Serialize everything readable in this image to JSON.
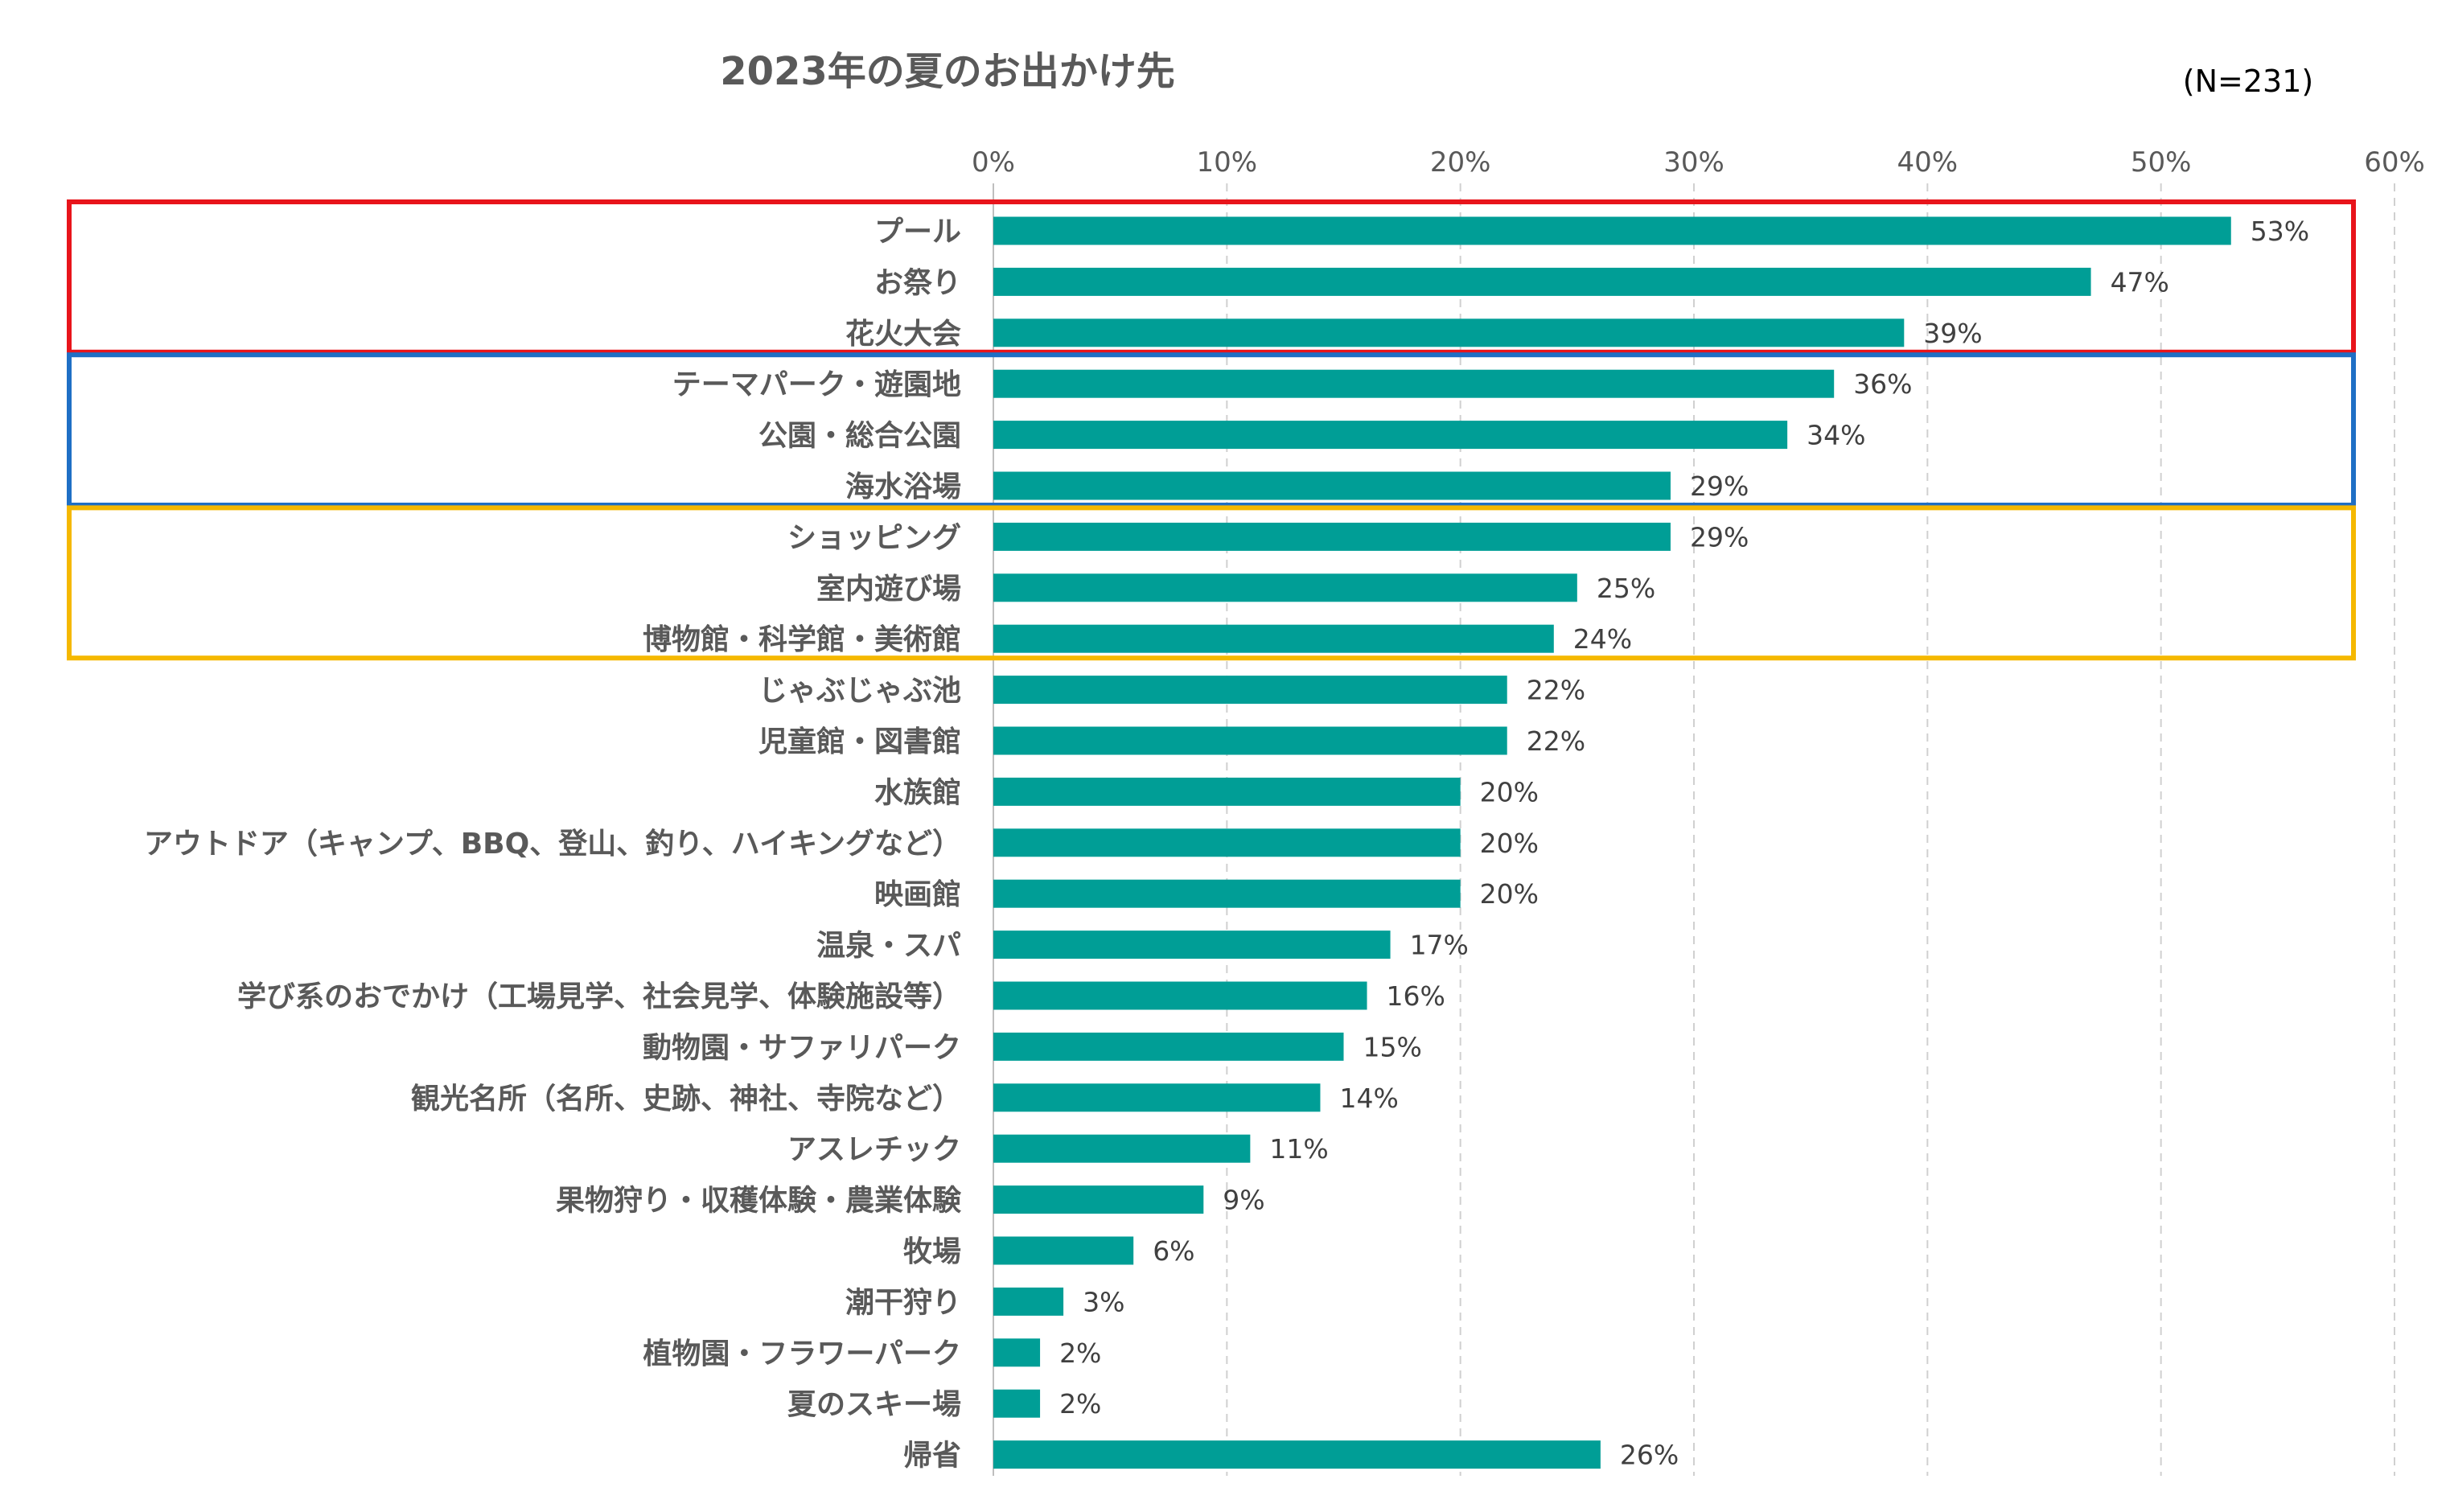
{
  "chart_data": {
    "type": "bar",
    "orientation": "horizontal",
    "title": "2023年の夏のお出かけ先",
    "note": "(N=231)",
    "xlabel": "",
    "ylabel": "",
    "xlim": [
      0,
      60
    ],
    "x_ticks": [
      "0%",
      "10%",
      "20%",
      "30%",
      "40%",
      "50%",
      "60%"
    ],
    "grid": true,
    "bar_color": "#009e96",
    "categories": [
      "プール",
      "お祭り",
      "花火大会",
      "テーマパーク・遊園地",
      "公園・総合公園",
      "海水浴場",
      "ショッピング",
      "室内遊び場",
      "博物館・科学館・美術館",
      "じゃぶじゃぶ池",
      "児童館・図書館",
      "水族館",
      "アウトドア（キャンプ、BBQ、登山、釣り、ハイキングなど）",
      "映画館",
      "温泉・スパ",
      "学び系のおでかけ（工場見学、社会見学、体験施設等）",
      "動物園・サファリパーク",
      "観光名所（名所、史跡、神社、寺院など）",
      "アスレチック",
      "果物狩り・収穫体験・農業体験",
      "牧場",
      "潮干狩り",
      "植物園・フラワーパーク",
      "夏のスキー場",
      "帰省"
    ],
    "values": [
      53,
      47,
      39,
      36,
      34,
      29,
      29,
      25,
      24,
      22,
      22,
      20,
      20,
      20,
      17,
      16,
      15,
      14,
      11,
      9,
      6,
      3,
      2,
      2,
      26
    ],
    "value_labels": [
      "53%",
      "47%",
      "39%",
      "36%",
      "34%",
      "29%",
      "29%",
      "25%",
      "24%",
      "22%",
      "22%",
      "20%",
      "20%",
      "20%",
      "17%",
      "16%",
      "15%",
      "14%",
      "11%",
      "9%",
      "6%",
      "3%",
      "2%",
      "2%",
      "26%"
    ],
    "highlight_groups": [
      {
        "color": "#e8141b",
        "first": 0,
        "last": 2
      },
      {
        "color": "#1f6fc5",
        "first": 3,
        "last": 5
      },
      {
        "color": "#f5b800",
        "first": 6,
        "last": 8
      }
    ]
  }
}
